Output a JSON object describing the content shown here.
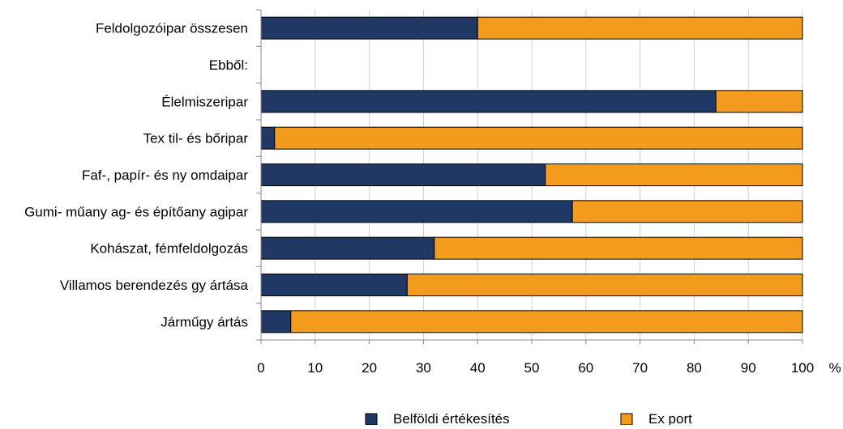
{
  "chart_data": {
    "type": "bar",
    "orientation": "horizontal",
    "stacked": true,
    "categories": [
      "Feldolgozóipar összesen",
      "Ebből:",
      "Élelmiszeripar",
      "Tex til- és bőripar",
      "Faf-, papír- és ny omdaipar",
      "Gumi- műany ag- és építőany agipar",
      "Kohászat, fémfeldolgozás",
      "Villamos berendezés gy ártása",
      "Járműgy ártás"
    ],
    "series": [
      {
        "name": "Belföldi értékesítés",
        "color": "#1f3864",
        "values": [
          40,
          null,
          84,
          2.5,
          52.5,
          57.5,
          32,
          27,
          5.5
        ]
      },
      {
        "name": "Ex port",
        "color": "#f29b1d",
        "values": [
          60,
          null,
          16,
          97.5,
          47.5,
          42.5,
          68,
          73,
          94.5
        ]
      }
    ],
    "xlim": [
      0,
      100
    ],
    "xticks": [
      "0",
      "10",
      "20",
      "30",
      "40",
      "50",
      "60",
      "70",
      "80",
      "90",
      "100"
    ],
    "unit_label": "%",
    "grid": true,
    "legend": "bottom"
  }
}
